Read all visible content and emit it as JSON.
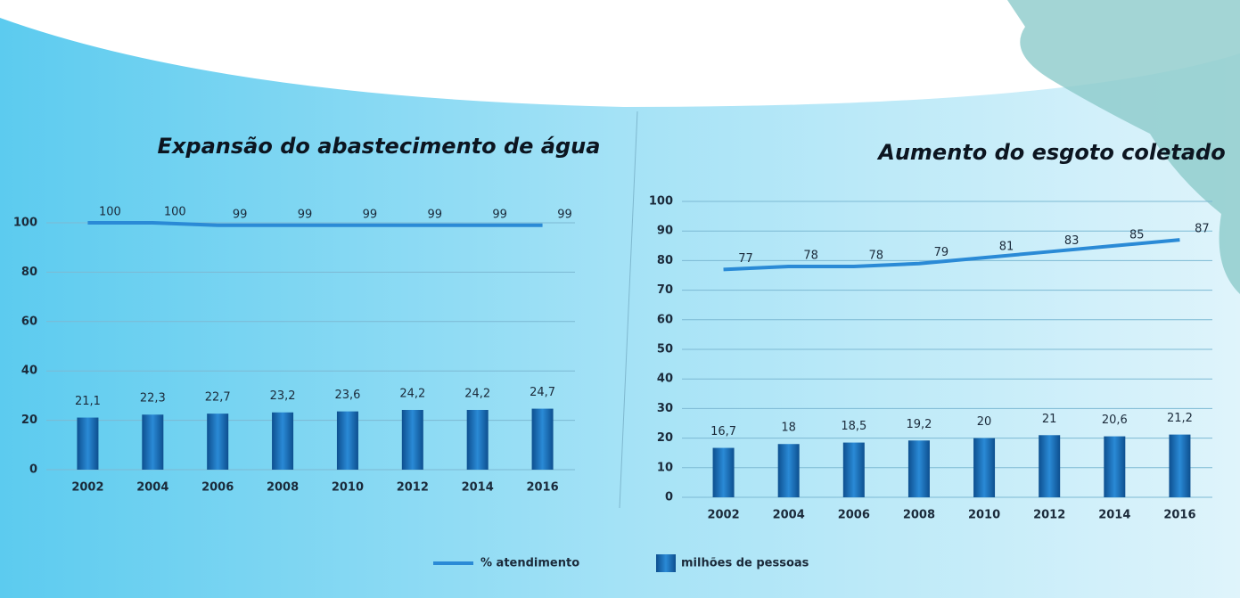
{
  "chart_data": [
    {
      "type": "combo",
      "title": "Expansão do abastecimento de água",
      "categories": [
        "2002",
        "2004",
        "2006",
        "2008",
        "2010",
        "2012",
        "2014",
        "2016"
      ],
      "ylim": [
        0,
        100
      ],
      "yticks": [
        0,
        20,
        40,
        60,
        80,
        100
      ],
      "grid": true,
      "series": [
        {
          "name": "% atendimento",
          "type": "line",
          "color": "#2a8ad6",
          "values": [
            100,
            100,
            99,
            99,
            99,
            99,
            99,
            99
          ]
        },
        {
          "name": "milhões de pessoas",
          "type": "bar",
          "color": "#1a6fb8",
          "values": [
            21.1,
            22.3,
            22.7,
            23.2,
            23.6,
            24.2,
            24.2,
            24.7
          ],
          "value_labels": [
            "21,1",
            "22,3",
            "22,7",
            "23,2",
            "23,6",
            "24,2",
            "24,2",
            "24,7"
          ]
        }
      ]
    },
    {
      "type": "combo",
      "title": "Aumento do esgoto coletado",
      "categories": [
        "2002",
        "2004",
        "2006",
        "2008",
        "2010",
        "2012",
        "2014",
        "2016"
      ],
      "ylim": [
        0,
        100
      ],
      "yticks": [
        0,
        10,
        20,
        30,
        40,
        50,
        60,
        70,
        80,
        90,
        100
      ],
      "grid": true,
      "series": [
        {
          "type": "line",
          "color": "#2a8ad6",
          "values": [
            77,
            78,
            78,
            79,
            81,
            83,
            85,
            87
          ]
        },
        {
          "type": "bar",
          "color": "#1a6fb8",
          "values": [
            16.7,
            18,
            18.5,
            19.2,
            20,
            21,
            20.6,
            21.2
          ],
          "value_labels": [
            "16,7",
            "18",
            "18,5",
            "19,2",
            "20",
            "21",
            "20,6",
            "21,2"
          ]
        }
      ]
    }
  ]
}
